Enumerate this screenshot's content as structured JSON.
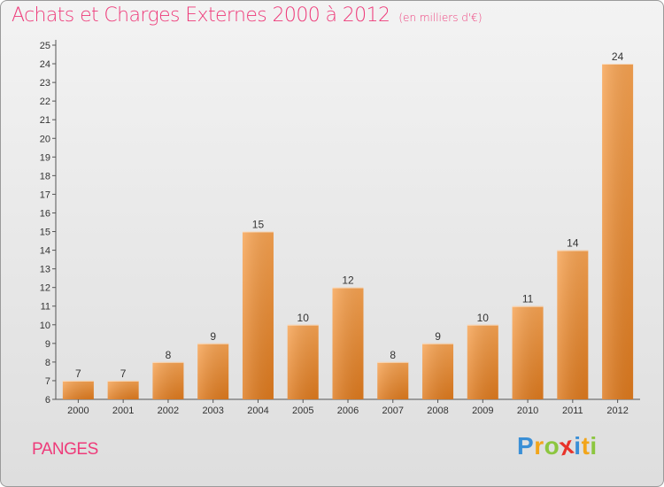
{
  "chart_data": {
    "type": "bar",
    "title": "Achats et Charges Externes 2000 à 2012",
    "subtitle": "(en milliers d'€)",
    "categories": [
      "2000",
      "2001",
      "2002",
      "2003",
      "2004",
      "2005",
      "2006",
      "2007",
      "2008",
      "2009",
      "2010",
      "2011",
      "2012"
    ],
    "values": [
      7,
      7,
      8,
      9,
      15,
      10,
      12,
      8,
      9,
      10,
      11,
      14,
      24
    ],
    "value_labels": [
      "7",
      "7",
      "8",
      "9",
      "15",
      "10",
      "12",
      "8",
      "9",
      "10",
      "11",
      "14",
      "24"
    ],
    "yticks": [
      6,
      7,
      8,
      9,
      10,
      11,
      12,
      13,
      14,
      15,
      16,
      17,
      18,
      19,
      20,
      21,
      22,
      23,
      24,
      25
    ],
    "ytick_labels": [
      "6",
      "7",
      "8",
      "9",
      "10",
      "11",
      "12",
      "13",
      "14",
      "15",
      "16",
      "17",
      "18",
      "19",
      "20",
      "21",
      "22",
      "23",
      "24",
      "25"
    ],
    "ylim": [
      6,
      25
    ],
    "grid": false,
    "bar_color": "#f28c2b",
    "title_color": "#ee3b7a"
  },
  "place_name": "PANGES",
  "logo": {
    "letters": [
      "P",
      "r",
      "o",
      "x",
      "i",
      "t",
      "i"
    ],
    "colors": [
      "#3a8fd6",
      "#f2a51a",
      "#8cc63f",
      "#e8332a",
      "#3a8fd6",
      "#f2a51a",
      "#8cc63f"
    ]
  }
}
